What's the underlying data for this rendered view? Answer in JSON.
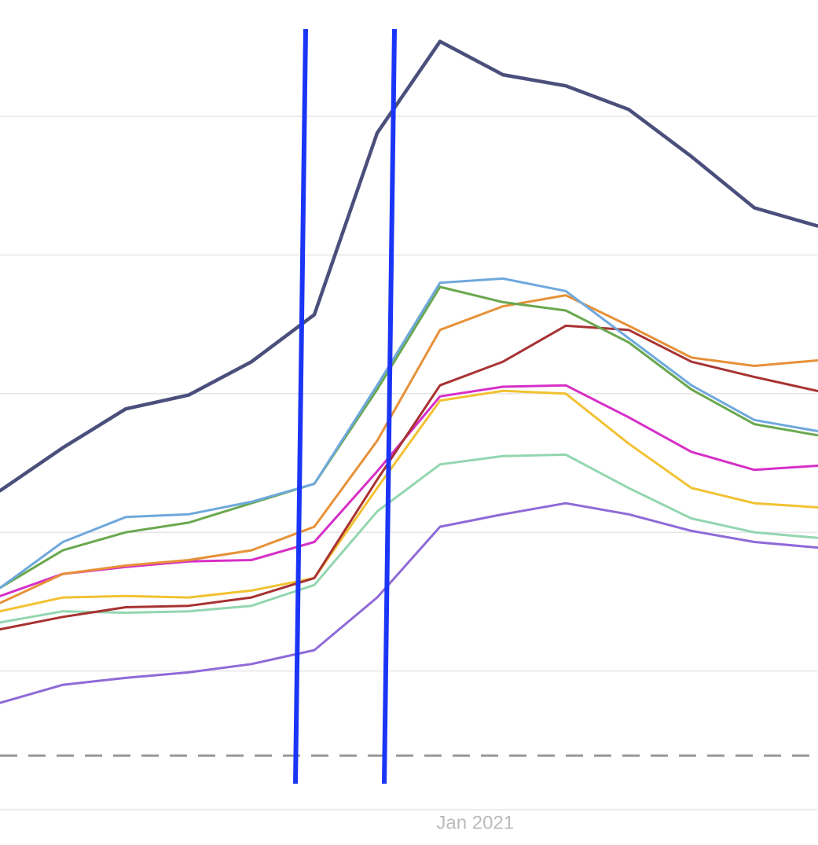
{
  "chart_data": {
    "type": "line",
    "x": [
      0,
      1,
      2,
      3,
      4,
      5,
      6,
      7,
      8,
      9,
      10,
      11,
      12,
      13
    ],
    "xlim": [
      0,
      13
    ],
    "xticks": [
      {
        "value": 7.56,
        "label": "Jan 2021"
      }
    ],
    "ylim": [
      0,
      6
    ],
    "yticks": [
      0,
      1,
      2,
      3,
      4,
      5
    ],
    "grid": true,
    "reference_line": 0.39,
    "series": [
      {
        "color": "#4b4f7c",
        "values": [
          2.3,
          2.61,
          2.89,
          2.99,
          3.23,
          3.57,
          4.88,
          5.54,
          5.3,
          5.22,
          5.05,
          4.71,
          4.34,
          4.21
        ]
      },
      {
        "color": "#6fa8dc",
        "values": [
          1.6,
          1.93,
          2.11,
          2.13,
          2.22,
          2.35,
          3.06,
          3.8,
          3.83,
          3.74,
          3.4,
          3.06,
          2.81,
          2.73
        ]
      },
      {
        "color": "#6aa84f",
        "values": [
          1.6,
          1.87,
          2.0,
          2.07,
          2.21,
          2.35,
          3.03,
          3.77,
          3.66,
          3.6,
          3.37,
          3.03,
          2.78,
          2.7
        ]
      },
      {
        "color": "#e69138",
        "values": [
          1.49,
          1.7,
          1.76,
          1.8,
          1.87,
          2.04,
          2.66,
          3.46,
          3.63,
          3.71,
          3.49,
          3.26,
          3.2,
          3.24
        ]
      },
      {
        "color": "#a83232",
        "values": [
          1.3,
          1.39,
          1.46,
          1.47,
          1.53,
          1.67,
          2.38,
          3.06,
          3.23,
          3.49,
          3.46,
          3.23,
          3.12,
          3.02
        ]
      },
      {
        "color": "#d62fc7",
        "values": [
          1.54,
          1.7,
          1.75,
          1.79,
          1.8,
          1.93,
          2.44,
          2.98,
          3.05,
          3.06,
          2.83,
          2.58,
          2.45,
          2.48
        ]
      },
      {
        "color": "#f1c232",
        "values": [
          1.43,
          1.53,
          1.54,
          1.53,
          1.58,
          1.67,
          2.32,
          2.95,
          3.02,
          3.0,
          2.64,
          2.32,
          2.21,
          2.18
        ]
      },
      {
        "color": "#93d6b0",
        "values": [
          1.35,
          1.43,
          1.42,
          1.43,
          1.47,
          1.62,
          2.15,
          2.49,
          2.55,
          2.56,
          2.32,
          2.1,
          2.0,
          1.96
        ]
      },
      {
        "color": "#8e6ad8",
        "values": [
          0.77,
          0.9,
          0.95,
          0.99,
          1.05,
          1.15,
          1.53,
          2.04,
          2.13,
          2.21,
          2.13,
          2.01,
          1.93,
          1.89
        ]
      }
    ]
  }
}
